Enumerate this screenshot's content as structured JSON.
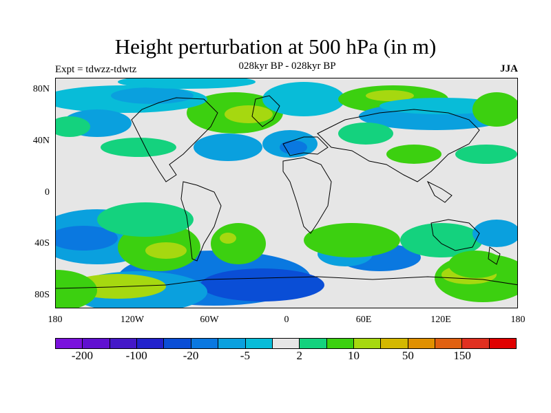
{
  "title": "Height perturbation at 500 hPa (in m)",
  "subtitle": "028kyr BP - 028kyr BP",
  "left_label": "Expt = tdwzz-tdwtz",
  "right_label": "JJA",
  "lat_ticks": [
    {
      "lat": 80,
      "label": "80N"
    },
    {
      "lat": 40,
      "label": "40N"
    },
    {
      "lat": 0,
      "label": "0"
    },
    {
      "lat": -40,
      "label": "40S"
    },
    {
      "lat": -80,
      "label": "80S"
    }
  ],
  "lon_ticks": [
    {
      "lon": -180,
      "label": "180"
    },
    {
      "lon": -120,
      "label": "120W"
    },
    {
      "lon": -60,
      "label": "60W"
    },
    {
      "lon": 0,
      "label": "0"
    },
    {
      "lon": 60,
      "label": "60E"
    },
    {
      "lon": 120,
      "label": "120E"
    },
    {
      "lon": 180,
      "label": "180"
    }
  ],
  "colorbar": {
    "colors": [
      "#7a12dc",
      "#6010d0",
      "#4418c8",
      "#2222cc",
      "#0a4ed6",
      "#0a78e0",
      "#0aa0de",
      "#08bcd8",
      "#e6e6e6",
      "#14d27e",
      "#3cd010",
      "#a6d810",
      "#d4b800",
      "#e09000",
      "#e06010",
      "#e03020",
      "#e00000"
    ],
    "labels": [
      {
        "index": 1,
        "label": "-200"
      },
      {
        "index": 3,
        "label": "-100"
      },
      {
        "index": 5,
        "label": "-20"
      },
      {
        "index": 7,
        "label": "-5"
      },
      {
        "index": 9,
        "label": "2"
      },
      {
        "index": 11,
        "label": "10"
      },
      {
        "index": 13,
        "label": "50"
      },
      {
        "index": 15,
        "label": "150"
      }
    ]
  }
}
